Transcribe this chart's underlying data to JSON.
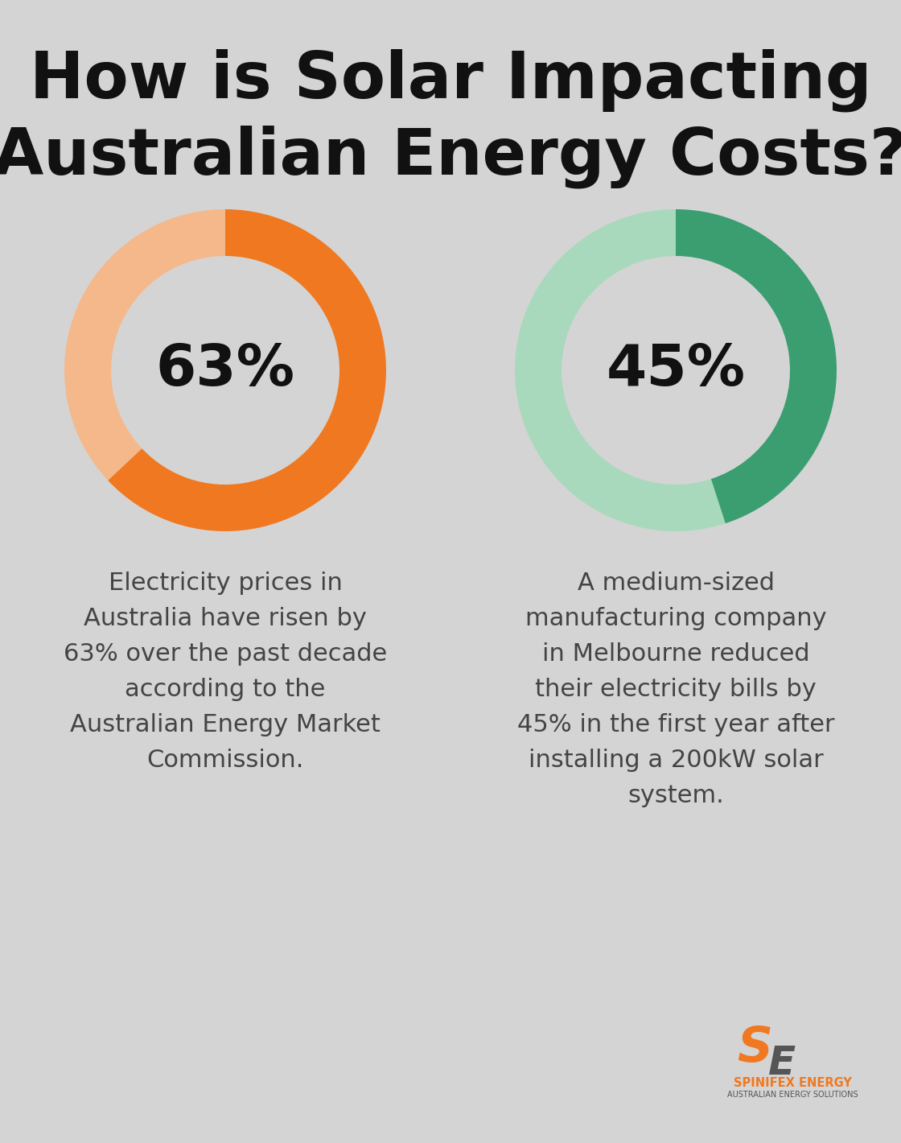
{
  "background_color": "#d4d4d4",
  "title_line1": "How is Solar Impacting",
  "title_line2": "Australian Energy Costs?",
  "title_fontsize": 58,
  "title_color": "#111111",
  "title_fontweight": "bold",
  "donut1_value": 63,
  "donut1_label": "63%",
  "donut1_color_main": "#f07820",
  "donut1_color_light": "#f5b88a",
  "donut2_value": 45,
  "donut2_label": "45%",
  "donut2_color_main": "#3a9e70",
  "donut2_color_light": "#a8d9bc",
  "donut_label_fontsize": 52,
  "donut_label_color": "#111111",
  "text1": "Electricity prices in\nAustralia have risen by\n63% over the past decade\naccording to the\nAustralian Energy Market\nCommission.",
  "text2": "A medium-sized\nmanufacturing company\nin Melbourne reduced\ntheir electricity bills by\n45% in the first year after\ninstalling a 200kW solar\nsystem.",
  "text_fontsize": 22,
  "text_color": "#444444",
  "logo_text1": "SPINIFEX ENERGY",
  "logo_text2": "AUSTRALIAN ENERGY SOLUTIONS",
  "logo_color_orange": "#f07820",
  "logo_color_gray": "#555555"
}
